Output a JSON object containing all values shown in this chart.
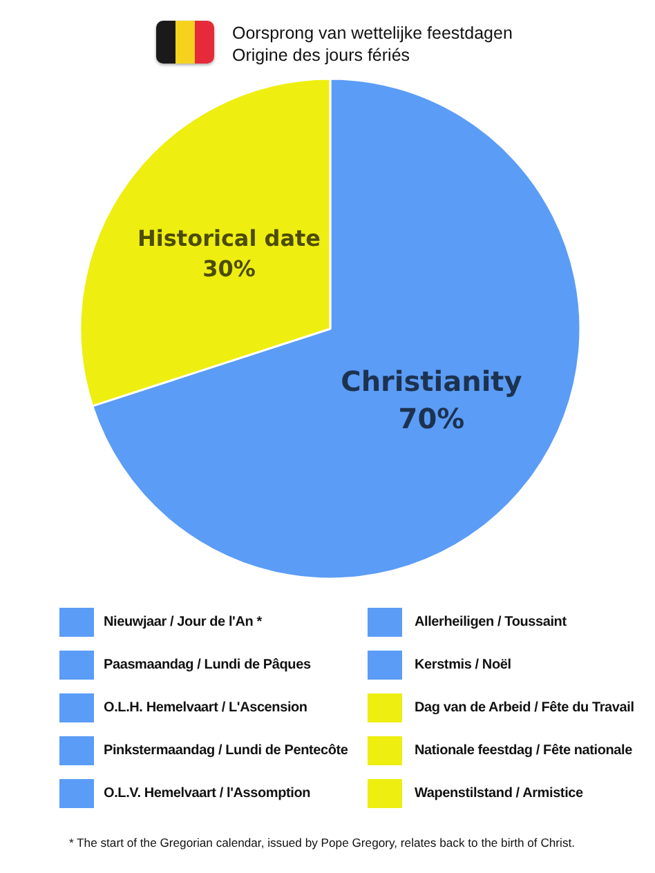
{
  "chart_data": [
    {
      "type": "pie",
      "title": "Oorsprong van wettelijke feestdagen",
      "subtitle": "Origine des jours fériés",
      "categories": [
        "Christianity",
        "Historical date"
      ],
      "values": [
        70,
        30
      ],
      "value_labels": [
        "70%",
        "30%"
      ],
      "colors": [
        "#5b9cf6",
        "#eeee11"
      ]
    },
    {
      "type": "other",
      "categories": [
        "Nieuwjaar / Jour de l'An *",
        "Paasmaandag / Lundi de Pâques",
        "O.L.H. Hemelvaart / L'Ascension",
        "Pinkstermaandag / Lundi de Pentecôte",
        "O.L.V. Hemelvaart / l'Assomption",
        "Allerheiligen / Toussaint",
        "Kerstmis / Noël",
        "Dag van de Arbeid / Fête du Travail",
        "Nationale feestdag / Fête nationale",
        "Wapenstilstand / Armistice"
      ],
      "colors": [
        "#5b9cf6",
        "#5b9cf6",
        "#5b9cf6",
        "#5b9cf6",
        "#5b9cf6",
        "#5b9cf6",
        "#5b9cf6",
        "#eeee11",
        "#eeee11",
        "#eeee11"
      ],
      "annotations": [
        "* The start of the Gregorian calendar, issued by Pope Gregory, relates back to the birth of Christ."
      ]
    }
  ]
}
